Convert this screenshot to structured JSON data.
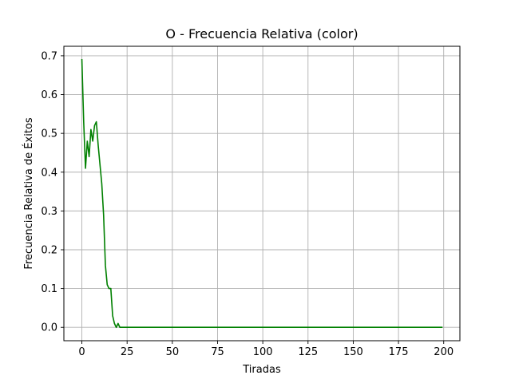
{
  "chart_data": {
    "type": "line",
    "title": "O - Frecuencia Relativa (color)",
    "xlabel": "Tiradas",
    "ylabel": "Frecuencia Relativa de Éxitos",
    "xlim": [
      -9.95,
      208.95
    ],
    "ylim": [
      -0.0345,
      0.7245
    ],
    "xticks": [
      0,
      25,
      50,
      75,
      100,
      125,
      150,
      175,
      200
    ],
    "yticks": [
      0.0,
      0.1,
      0.2,
      0.3,
      0.4,
      0.5,
      0.6,
      0.7
    ],
    "xtick_labels": [
      "0",
      "25",
      "50",
      "75",
      "100",
      "125",
      "150",
      "175",
      "200"
    ],
    "ytick_labels": [
      "0.0",
      "0.1",
      "0.2",
      "0.3",
      "0.4",
      "0.5",
      "0.6",
      "0.7"
    ],
    "grid": true,
    "series": [
      {
        "color": "#008000",
        "x": [
          0,
          1,
          2,
          3,
          4,
          5,
          6,
          7,
          8,
          9,
          10,
          11,
          12,
          13,
          14,
          15,
          16,
          17,
          18,
          19,
          20,
          21,
          22,
          23,
          199
        ],
        "y": [
          0.69,
          0.53,
          0.41,
          0.48,
          0.44,
          0.51,
          0.48,
          0.52,
          0.53,
          0.47,
          0.42,
          0.37,
          0.29,
          0.16,
          0.11,
          0.1,
          0.1,
          0.03,
          0.01,
          0.0,
          0.01,
          0.0,
          0.0,
          0.0,
          0.0
        ]
      }
    ]
  }
}
